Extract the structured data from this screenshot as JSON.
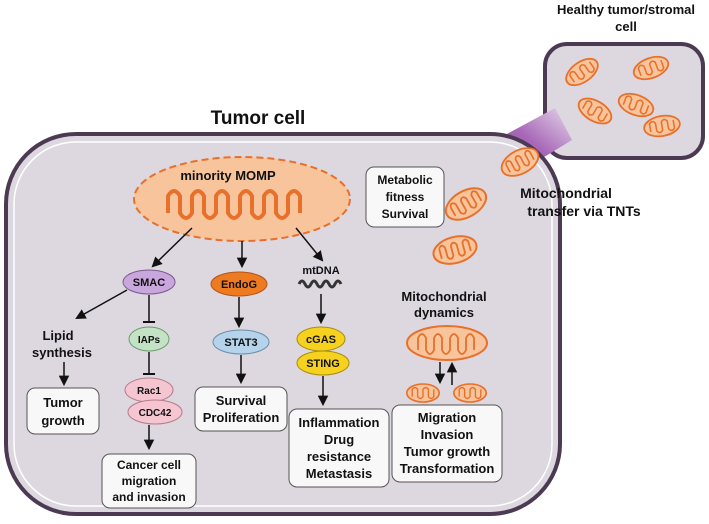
{
  "colors": {
    "cell_fill": "#ddd8e0",
    "cell_stroke": "#4b3a52",
    "tnt": "#8e3a8e",
    "mito_fill": "#f7c49c",
    "mito_stroke": "#e8702a",
    "smac": "#c9a6dc",
    "iaps": "#c4e2c6",
    "rac": "#f5c6d2",
    "endog": "#ee7a22",
    "stat3": "#b5d3ea",
    "sting": "#f6d21e",
    "box": "#f8f8f8"
  },
  "labels": {
    "healthy_cell": [
      "Healthy tumor/stromal",
      "cell"
    ],
    "tumor_cell": "Tumor cell",
    "minority_momp": "minority MOMP",
    "transfer": [
      "Mitochondrial",
      "transfer via TNTs"
    ],
    "metabolic": [
      "Metabolic",
      "fitness",
      "Survival"
    ],
    "smac": "SMAC",
    "endog": "EndoG",
    "mtdna": "mtDNA",
    "lipid": [
      "Lipid",
      "synthesis"
    ],
    "tumor_growth": [
      "Tumor",
      "growth"
    ],
    "iaps": "IAPs",
    "rac1": "Rac1",
    "cdc42": "CDC42",
    "cancer_cell": [
      "Cancer cell",
      "migration",
      "and invasion"
    ],
    "stat3": "STAT3",
    "survival_prolif": [
      "Survival",
      "Proliferation"
    ],
    "cgas": "cGAS",
    "sting": "STING",
    "inflammation": [
      "Inflammation",
      "Drug",
      "resistance",
      "Metastasis"
    ],
    "mito_dynamics": [
      "Mitochondrial",
      "dynamics"
    ],
    "migration": [
      "Migration",
      "Invasion",
      "Tumor growth",
      "Transformation"
    ]
  }
}
